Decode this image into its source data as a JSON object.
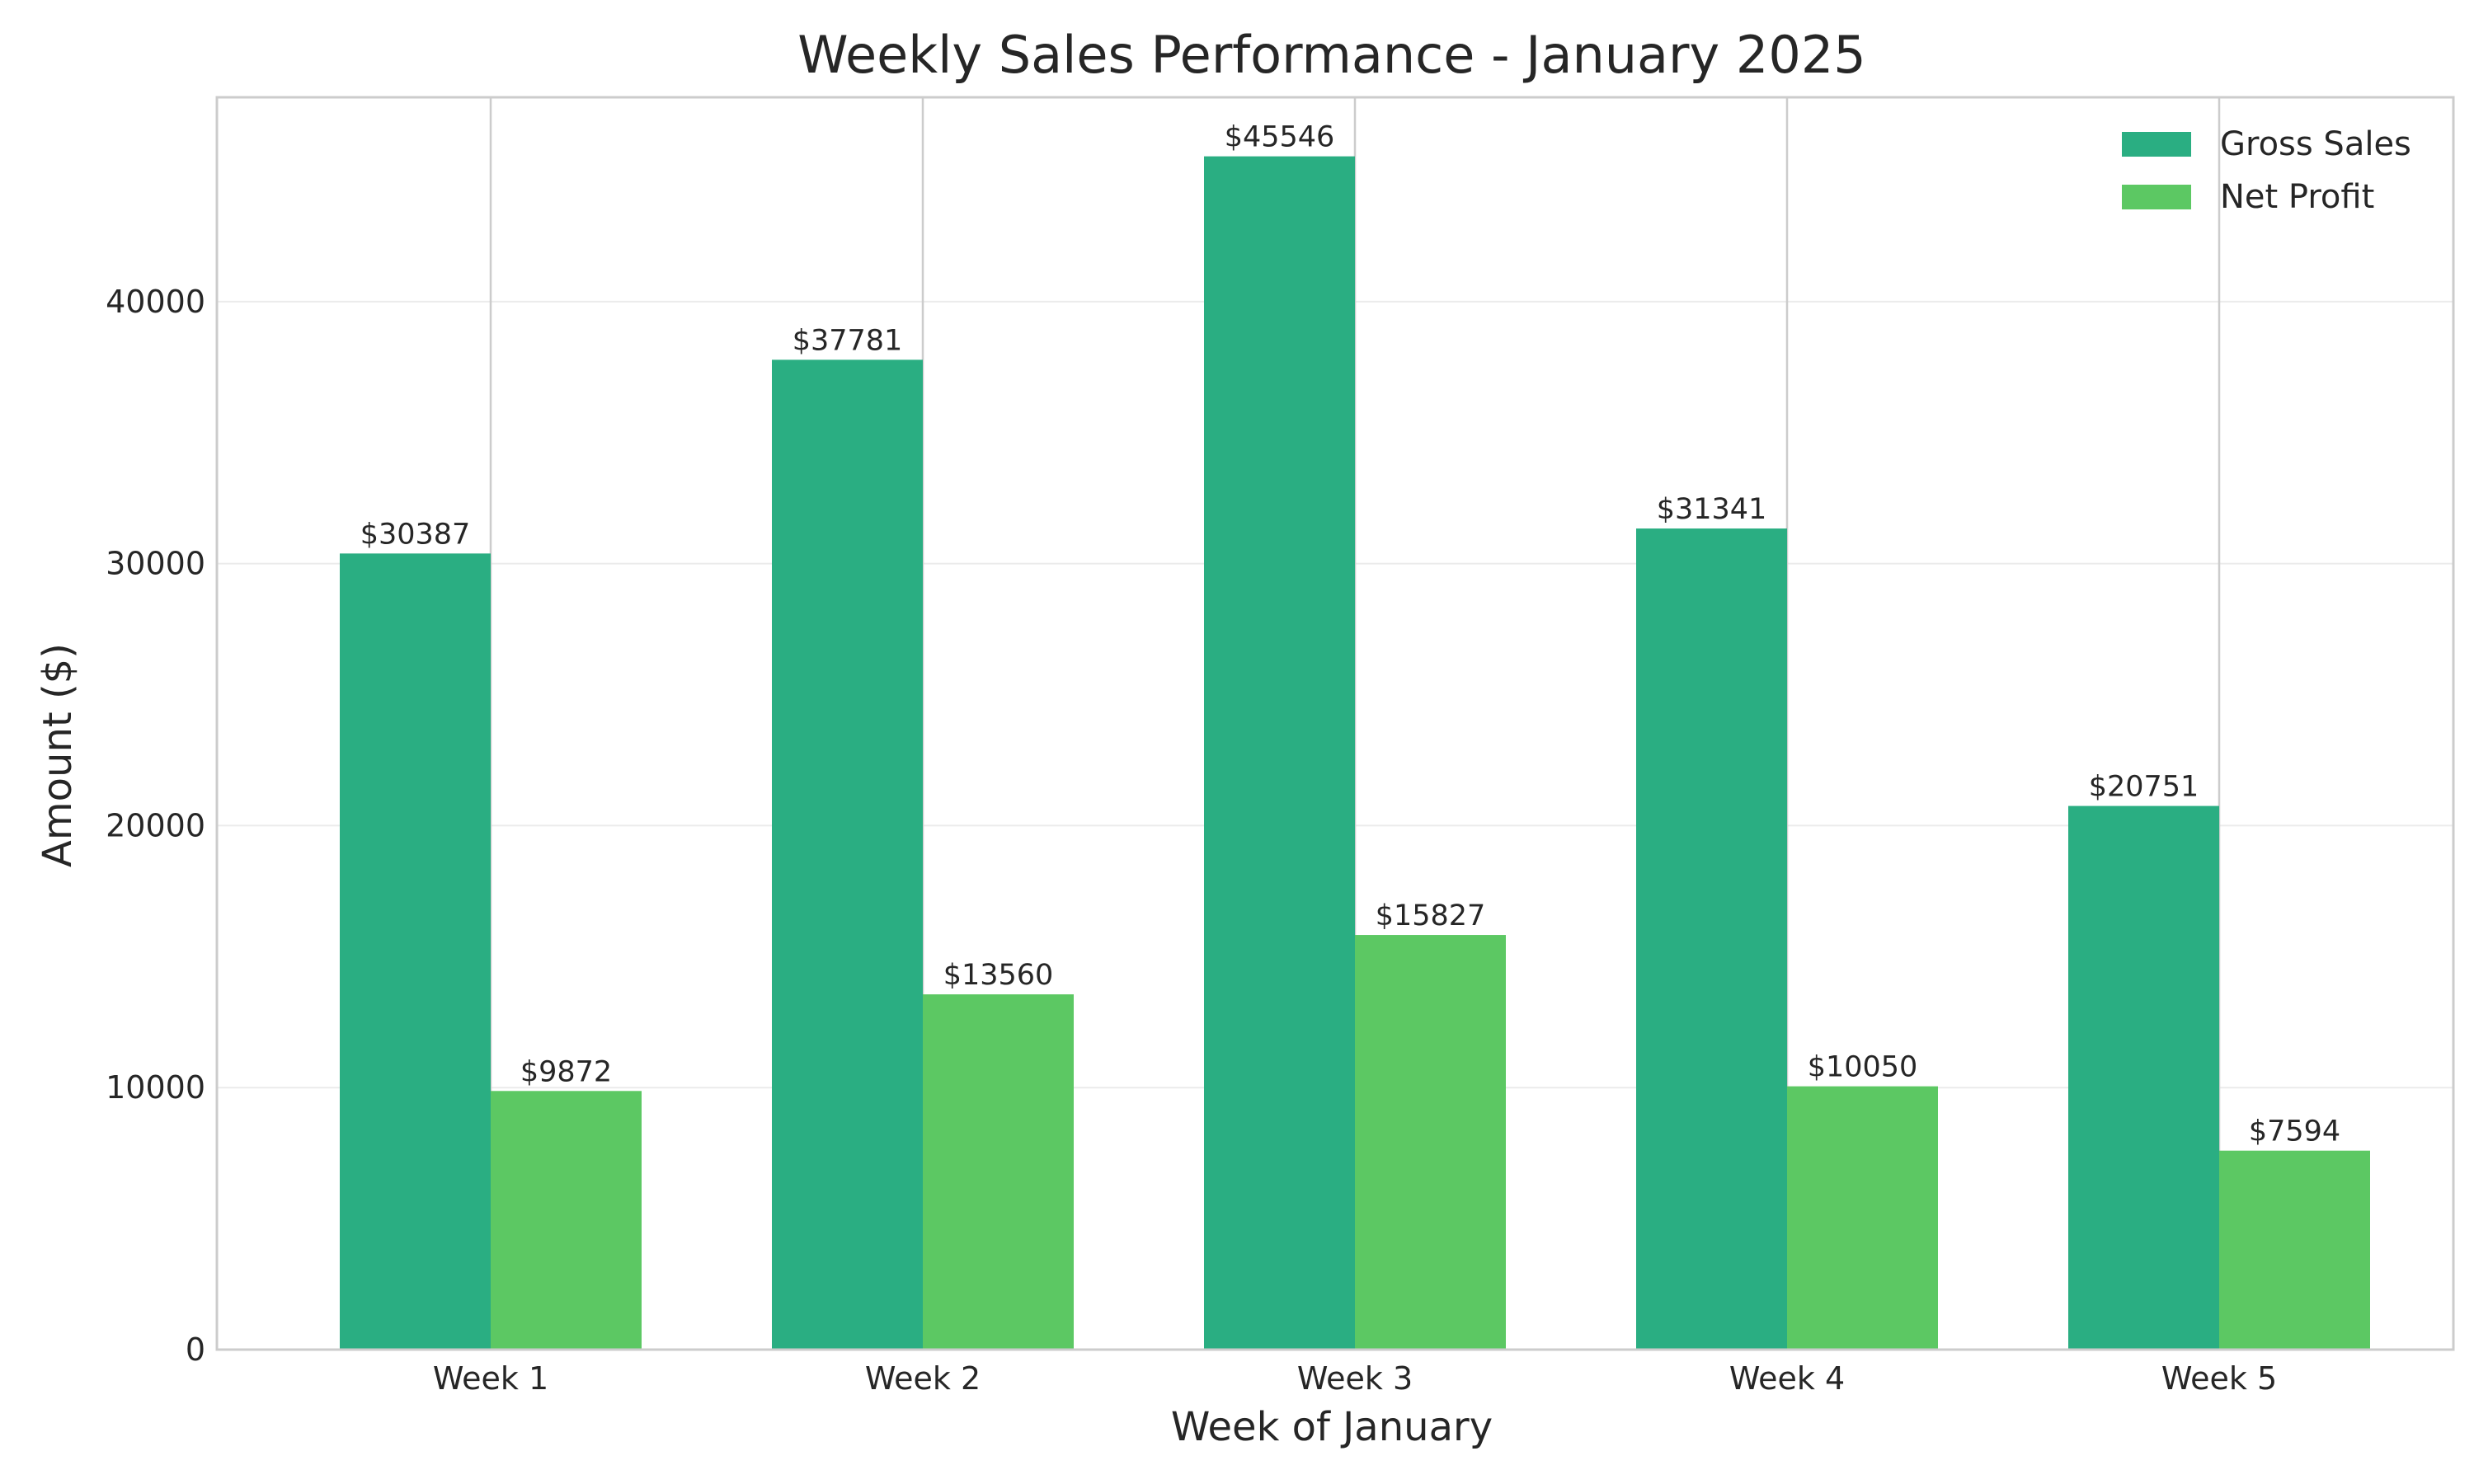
{
  "chart_data": {
    "type": "bar",
    "title": "Weekly Sales Performance - January 2025",
    "xlabel": "Week of January",
    "ylabel": "Amount ($)",
    "categories": [
      "Week 1",
      "Week 2",
      "Week 3",
      "Week 4",
      "Week 5"
    ],
    "series": [
      {
        "name": "Gross Sales",
        "color": "#2aae82",
        "values": [
          30387,
          37781,
          45546,
          31341,
          20751
        ],
        "labels": [
          "$30387",
          "$37781",
          "$45546",
          "$31341",
          "$20751"
        ]
      },
      {
        "name": "Net Profit",
        "color": "#5cc863",
        "values": [
          9872,
          13560,
          15827,
          10050,
          7594
        ],
        "labels": [
          "$9872",
          "$13560",
          "$15827",
          "$10050",
          "$7594"
        ]
      }
    ],
    "ylim": [
      0,
      47800
    ],
    "yticks": [
      0,
      10000,
      20000,
      30000,
      40000
    ],
    "ytick_labels": [
      "0",
      "10000",
      "20000",
      "30000",
      "40000"
    ],
    "grid": true,
    "legend_position": "top-right"
  }
}
